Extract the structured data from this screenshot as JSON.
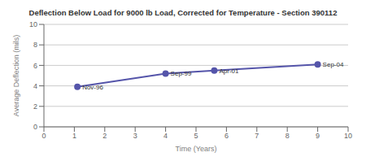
{
  "chart_data": {
    "type": "line",
    "title": "Deflection Below Load for 9000 lb Load, Corrected for Temperature - Section 390112",
    "x_label": "Time (Years)",
    "y_label": "Average Deflection (mils)",
    "x": [
      1.1,
      4.0,
      5.6,
      9.0
    ],
    "values": [
      3.9,
      5.2,
      5.5,
      6.1
    ],
    "labels": [
      "Nov-96",
      "Sep-99",
      "Apr-01",
      "Sep-04"
    ],
    "xlim": [
      0,
      10
    ],
    "ylim": [
      0,
      10
    ],
    "xticks": [
      0,
      1,
      2,
      3,
      4,
      5,
      6,
      7,
      8,
      9,
      10
    ],
    "yticks": [
      0,
      2,
      4,
      6,
      8,
      10
    ],
    "grid": "y",
    "color": "#5555aa",
    "marker": "circle"
  }
}
